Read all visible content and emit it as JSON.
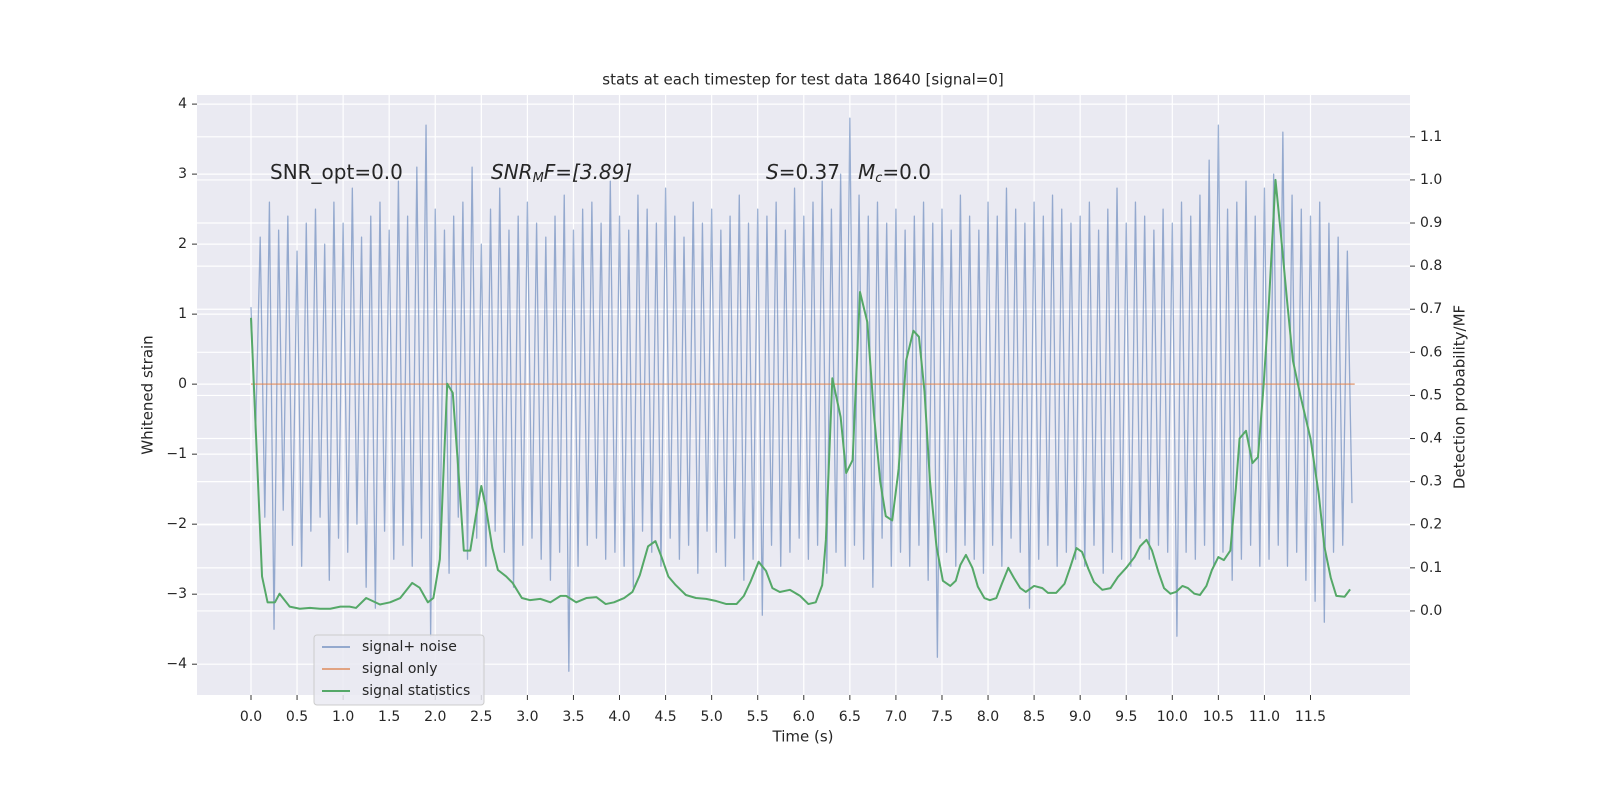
{
  "chart_data": {
    "type": "line",
    "title": "stats at each timestep for test data 18640 [signal=0]",
    "xlabel": "Time (s)",
    "ylabel": "Whitened strain",
    "y2label": "Detection probability/MF",
    "xlim": [
      -0.586,
      12.58
    ],
    "ylim": [
      -4.44,
      4.13
    ],
    "y2lim": [
      -0.195,
      1.197
    ],
    "xticks": [
      {
        "value": 0,
        "label": "0.0"
      },
      0.5,
      {
        "value": 1,
        "label": "1.0"
      },
      1.5,
      {
        "value": 2,
        "label": "2.0"
      },
      2.5,
      {
        "value": 3,
        "label": "3.0"
      },
      3.5,
      {
        "value": 4,
        "label": "4.0"
      },
      4.5,
      {
        "value": 5,
        "label": "5.0"
      },
      5.5,
      {
        "value": 6,
        "label": "6.0"
      },
      6.5,
      {
        "value": 7,
        "label": "7.0"
      },
      7.5,
      {
        "value": 8,
        "label": "8.0"
      },
      8.5,
      {
        "value": 9,
        "label": "9.0"
      },
      9.5,
      {
        "value": 10,
        "label": "10.0"
      },
      10.5,
      {
        "value": 11,
        "label": "11.0"
      },
      11.5
    ],
    "yticks": [
      {
        "value": -4,
        "label": "−4"
      },
      {
        "value": -3,
        "label": "−3"
      },
      {
        "value": -2,
        "label": "−2"
      },
      {
        "value": -1,
        "label": "−1"
      },
      0,
      1,
      2,
      3,
      4
    ],
    "y2ticks": [
      {
        "value": 0,
        "label": "0.0"
      },
      0.1,
      0.2,
      0.3,
      0.4,
      0.5,
      0.6,
      0.7,
      0.8,
      0.9,
      {
        "value": 1,
        "label": "1.0"
      },
      1.1
    ],
    "grid": true,
    "legend": "lower left",
    "annotations": [
      [
        "SNR_opt=0.0"
      ],
      [
        "SNR",
        "M",
        "F=[3.89]"
      ],
      [
        "S",
        "=0.37"
      ],
      [
        "M",
        "c",
        "=0.0"
      ]
    ],
    "series": [
      {
        "name": "signal+ noise",
        "color": "#4c72b0",
        "axis": "y",
        "x": [
          0,
          0.05,
          0.1,
          0.15,
          0.2,
          0.25,
          0.3,
          0.35,
          0.4,
          0.45,
          0.5,
          0.55,
          0.6,
          0.65,
          0.7,
          0.75,
          0.8,
          0.85,
          0.9,
          0.95,
          1,
          1.05,
          1.1,
          1.15,
          1.2,
          1.25,
          1.3,
          1.35,
          1.4,
          1.45,
          1.5,
          1.55,
          1.6,
          1.65,
          1.7,
          1.75,
          1.8,
          1.85,
          1.9,
          1.95,
          2,
          2.05,
          2.1,
          2.15,
          2.2,
          2.25,
          2.3,
          2.35,
          2.4,
          2.45,
          2.5,
          2.55,
          2.6,
          2.65,
          2.7,
          2.75,
          2.8,
          2.85,
          2.9,
          2.95,
          3,
          3.05,
          3.1,
          3.15,
          3.2,
          3.25,
          3.3,
          3.35,
          3.4,
          3.45,
          3.5,
          3.55,
          3.6,
          3.65,
          3.7,
          3.75,
          3.8,
          3.85,
          3.9,
          3.95,
          4,
          4.05,
          4.1,
          4.15,
          4.2,
          4.25,
          4.3,
          4.35,
          4.4,
          4.45,
          4.5,
          4.55,
          4.6,
          4.65,
          4.7,
          4.75,
          4.8,
          4.85,
          4.9,
          4.95,
          5,
          5.05,
          5.1,
          5.15,
          5.2,
          5.25,
          5.3,
          5.35,
          5.4,
          5.45,
          5.5,
          5.55,
          5.6,
          5.65,
          5.7,
          5.75,
          5.8,
          5.85,
          5.9,
          5.95,
          6,
          6.05,
          6.1,
          6.15,
          6.2,
          6.25,
          6.3,
          6.35,
          6.4,
          6.45,
          6.5,
          6.55,
          6.6,
          6.65,
          6.7,
          6.75,
          6.8,
          6.85,
          6.9,
          6.95,
          7,
          7.05,
          7.1,
          7.15,
          7.2,
          7.25,
          7.3,
          7.35,
          7.4,
          7.45,
          7.5,
          7.55,
          7.6,
          7.65,
          7.7,
          7.75,
          7.8,
          7.85,
          7.9,
          7.95,
          8,
          8.05,
          8.1,
          8.15,
          8.2,
          8.25,
          8.3,
          8.35,
          8.4,
          8.45,
          8.5,
          8.55,
          8.6,
          8.65,
          8.7,
          8.75,
          8.8,
          8.85,
          8.9,
          8.95,
          9,
          9.05,
          9.1,
          9.15,
          9.2,
          9.25,
          9.3,
          9.35,
          9.4,
          9.45,
          9.5,
          9.55,
          9.6,
          9.65,
          9.7,
          9.75,
          9.8,
          9.85,
          9.9,
          9.95,
          10,
          10.05,
          10.1,
          10.15,
          10.2,
          10.25,
          10.3,
          10.35,
          10.4,
          10.45,
          10.5,
          10.55,
          10.6,
          10.65,
          10.7,
          10.75,
          10.8,
          10.85,
          10.9,
          10.95,
          11,
          11.05,
          11.1,
          11.15,
          11.2,
          11.25,
          11.3,
          11.35,
          11.4,
          11.45,
          11.5,
          11.55,
          11.6,
          11.65,
          11.7,
          11.75,
          11.8,
          11.85,
          11.9,
          11.95
        ],
        "values": [
          1.1,
          -0.7,
          2.1,
          -1.9,
          2.6,
          -3.5,
          2.2,
          -1.8,
          2.4,
          -2.3,
          1.9,
          -2.6,
          2.3,
          -2.1,
          2.5,
          -1.9,
          2.0,
          -2.8,
          2.6,
          -2.2,
          2.3,
          -2.4,
          2.8,
          -2.0,
          2.1,
          -2.9,
          2.4,
          -3.2,
          2.6,
          -2.1,
          2.2,
          -2.5,
          2.9,
          -2.3,
          2.4,
          -2.6,
          3.1,
          -2.2,
          3.7,
          -3.6,
          2.5,
          -2.3,
          2.2,
          -2.7,
          2.4,
          -1.9,
          2.6,
          -2.5,
          3.1,
          -2.2,
          2.0,
          -2.6,
          2.5,
          -2.1,
          2.8,
          -2.4,
          2.2,
          -2.9,
          2.4,
          -2.3,
          2.6,
          -2.2,
          2.3,
          -2.5,
          2.1,
          -2.8,
          2.4,
          -2.4,
          2.7,
          -4.1,
          2.2,
          -2.6,
          2.5,
          -2.3,
          2.6,
          -2.2,
          2.3,
          -2.5,
          2.9,
          -2.4,
          2.4,
          -2.6,
          2.2,
          -2.9,
          2.7,
          -2.1,
          2.5,
          -2.4,
          2.3,
          -2.6,
          2.8,
          -2.2,
          2.4,
          -2.5,
          2.1,
          -2.3,
          2.6,
          -2.7,
          2.3,
          -2.1,
          2.5,
          -2.4,
          2.2,
          -2.6,
          2.4,
          -2.2,
          2.7,
          -2.8,
          2.3,
          -2.5,
          2.5,
          -3.3,
          2.4,
          -2.3,
          2.6,
          -2.6,
          2.2,
          -2.4,
          2.8,
          -2.2,
          2.4,
          -2.5,
          2.6,
          -2.3,
          2.9,
          -2.7,
          2.5,
          -2.4,
          3.0,
          -2.6,
          3.8,
          -2.3,
          2.7,
          -2.5,
          2.4,
          -2.9,
          2.6,
          -2.2,
          2.3,
          -2.6,
          2.5,
          -2.4,
          2.2,
          -2.6,
          2.4,
          -2.3,
          2.6,
          -2.8,
          2.3,
          -3.9,
          2.5,
          -2.4,
          2.2,
          -2.6,
          2.7,
          -2.3,
          2.4,
          -2.5,
          2.2,
          -2.7,
          2.6,
          -2.3,
          2.4,
          -2.6,
          2.8,
          -2.2,
          2.5,
          -2.4,
          2.3,
          -3.2,
          2.6,
          -2.5,
          2.4,
          -2.3,
          2.7,
          -2.6,
          2.5,
          -2.4,
          2.3,
          -2.5,
          2.4,
          -2.6,
          2.6,
          -2.3,
          2.2,
          -2.7,
          2.5,
          -2.4,
          2.8,
          -2.5,
          2.3,
          -2.6,
          2.6,
          -2.2,
          2.4,
          -2.5,
          2.2,
          -2.3,
          2.5,
          -2.4,
          2.3,
          -3.6,
          2.6,
          -2.4,
          2.4,
          -2.5,
          2.7,
          -2.3,
          3.2,
          -2.6,
          3.7,
          -2.4,
          2.5,
          -2.8,
          2.6,
          -2.5,
          2.9,
          -2.3,
          2.4,
          -2.6,
          2.8,
          -2.5,
          3.0,
          -2.3,
          3.6,
          -2.6,
          2.7,
          -2.4,
          2.5,
          -2.8,
          2.4,
          -3.1,
          2.6,
          -3.4,
          2.3,
          -2.4,
          2.1,
          -2.3,
          1.9,
          -1.7
        ]
      },
      {
        "name": "signal only",
        "color": "#dd8452",
        "axis": "y",
        "x": [
          0,
          11.98
        ],
        "values": [
          0,
          0
        ]
      },
      {
        "name": "signal statistics",
        "color": "#55a868",
        "axis": "y2",
        "x": [
          0,
          0.12,
          0.18,
          0.26,
          0.31,
          0.42,
          0.53,
          0.64,
          0.75,
          0.86,
          0.97,
          1.07,
          1.14,
          1.25,
          1.4,
          1.51,
          1.62,
          1.75,
          1.83,
          1.92,
          1.98,
          2.05,
          2.13,
          2.19,
          2.25,
          2.31,
          2.38,
          2.44,
          2.5,
          2.55,
          2.62,
          2.68,
          2.77,
          2.84,
          2.94,
          3.03,
          3.14,
          3.25,
          3.36,
          3.42,
          3.53,
          3.64,
          3.75,
          3.85,
          3.94,
          4.05,
          4.14,
          4.22,
          4.31,
          4.39,
          4.46,
          4.53,
          4.61,
          4.72,
          4.83,
          4.94,
          5.05,
          5.16,
          5.27,
          5.35,
          5.42,
          5.51,
          5.59,
          5.66,
          5.74,
          5.85,
          5.96,
          6.05,
          6.13,
          6.2,
          6.24,
          6.31,
          6.4,
          6.46,
          6.53,
          6.61,
          6.69,
          6.76,
          6.83,
          6.89,
          6.96,
          7.03,
          7.11,
          7.19,
          7.25,
          7.31,
          7.37,
          7.44,
          7.51,
          7.59,
          7.65,
          7.7,
          7.76,
          7.83,
          7.89,
          7.96,
          8.02,
          8.09,
          8.15,
          8.22,
          8.28,
          8.35,
          8.41,
          8.5,
          8.59,
          8.65,
          8.74,
          8.83,
          8.89,
          8.96,
          9.02,
          9.09,
          9.15,
          9.24,
          9.33,
          9.41,
          9.5,
          9.59,
          9.65,
          9.72,
          9.78,
          9.85,
          9.91,
          9.98,
          10.04,
          10.11,
          10.17,
          10.24,
          10.3,
          10.37,
          10.43,
          10.5,
          10.56,
          10.63,
          10.69,
          10.73,
          10.8,
          10.87,
          10.93,
          10.99,
          11.05,
          11.12,
          11.18,
          11.25,
          11.31,
          11.39,
          11.5,
          11.59,
          11.65,
          11.72,
          11.78,
          11.87,
          11.93
        ],
        "values": [
          0.68,
          0.08,
          0.02,
          0.02,
          0.04,
          0.01,
          0.005,
          0.007,
          0.005,
          0.005,
          0.01,
          0.01,
          0.007,
          0.03,
          0.015,
          0.02,
          0.03,
          0.065,
          0.054,
          0.02,
          0.03,
          0.12,
          0.527,
          0.506,
          0.33,
          0.14,
          0.14,
          0.22,
          0.29,
          0.24,
          0.146,
          0.095,
          0.08,
          0.065,
          0.03,
          0.025,
          0.028,
          0.02,
          0.035,
          0.035,
          0.02,
          0.03,
          0.032,
          0.016,
          0.02,
          0.03,
          0.044,
          0.083,
          0.15,
          0.162,
          0.123,
          0.08,
          0.06,
          0.037,
          0.03,
          0.028,
          0.023,
          0.016,
          0.016,
          0.035,
          0.067,
          0.114,
          0.093,
          0.053,
          0.044,
          0.049,
          0.035,
          0.016,
          0.02,
          0.06,
          0.165,
          0.54,
          0.45,
          0.32,
          0.35,
          0.74,
          0.67,
          0.46,
          0.3,
          0.22,
          0.21,
          0.33,
          0.58,
          0.65,
          0.636,
          0.51,
          0.3,
          0.15,
          0.07,
          0.058,
          0.07,
          0.107,
          0.13,
          0.1,
          0.056,
          0.03,
          0.025,
          0.03,
          0.063,
          0.1,
          0.077,
          0.053,
          0.044,
          0.058,
          0.053,
          0.042,
          0.042,
          0.063,
          0.1,
          0.146,
          0.137,
          0.097,
          0.067,
          0.049,
          0.053,
          0.079,
          0.1,
          0.125,
          0.15,
          0.165,
          0.14,
          0.09,
          0.053,
          0.04,
          0.044,
          0.058,
          0.053,
          0.04,
          0.037,
          0.058,
          0.095,
          0.125,
          0.118,
          0.14,
          0.285,
          0.4,
          0.418,
          0.343,
          0.357,
          0.52,
          0.72,
          1.0,
          0.87,
          0.71,
          0.58,
          0.5,
          0.4,
          0.27,
          0.15,
          0.077,
          0.035,
          0.033,
          0.05
        ]
      }
    ]
  }
}
